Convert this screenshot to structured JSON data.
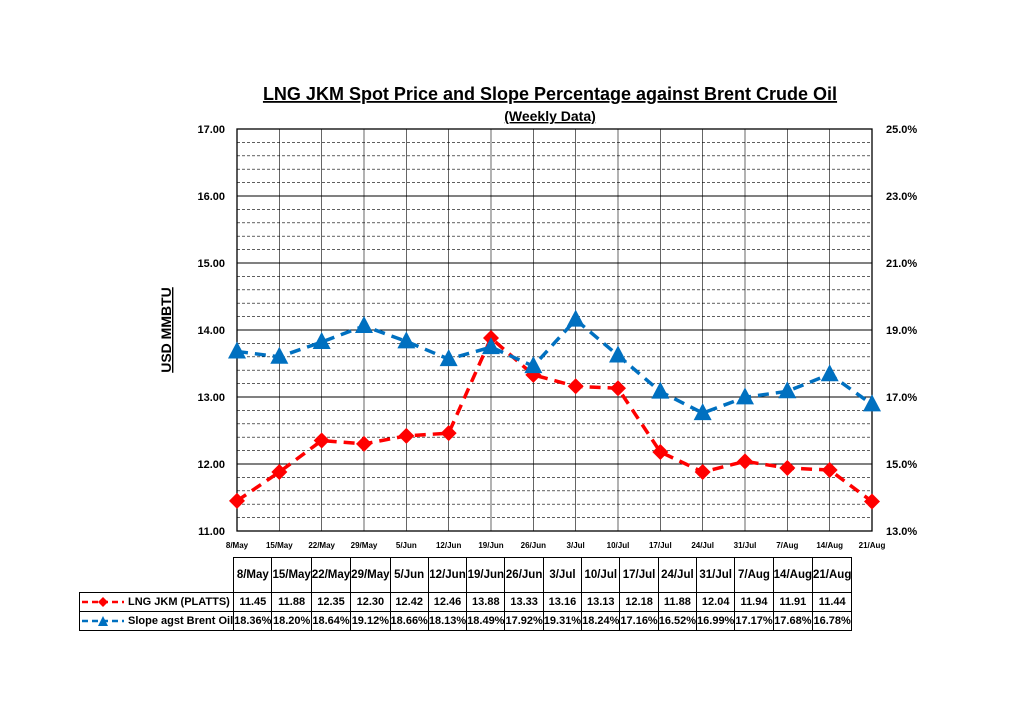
{
  "chart_data": {
    "type": "line",
    "title": "LNG JKM Spot Price and Slope Percentage against Brent Crude Oil",
    "subtitle": "(Weekly Data)",
    "ylabel": "USD MMBTU",
    "ylim": [
      11.0,
      17.0
    ],
    "y2lim": [
      13.0,
      25.0
    ],
    "y_ticks": [
      "11.00",
      "12.00",
      "13.00",
      "14.00",
      "15.00",
      "16.00",
      "17.00"
    ],
    "y2_ticks": [
      "13.0%",
      "15.0%",
      "17.0%",
      "19.0%",
      "21.0%",
      "23.0%",
      "25.0%"
    ],
    "categories": [
      "8/May",
      "15/May",
      "22/May",
      "29/May",
      "5/Jun",
      "12/Jun",
      "19/Jun",
      "26/Jun",
      "3/Jul",
      "10/Jul",
      "17/Jul",
      "24/Jul",
      "31/Jul",
      "7/Aug",
      "14/Aug",
      "21/Aug"
    ],
    "table_headers": [
      "8/May",
      "15/May",
      "22/May",
      "29/May",
      "5/Jun",
      "12/Jun",
      "19/Jun",
      "26/Jun",
      "3/Jul",
      "10/Jul",
      "17/Jul",
      "24/Jul",
      "31/Jul",
      "7/Aug",
      "14/Aug",
      "21/Aug"
    ],
    "grid": true,
    "legend": "table-bottom",
    "series": [
      {
        "name": "LNG JKM (PLATTS)",
        "axis": "left",
        "color": "#ff0000",
        "marker": "diamond",
        "values": [
          11.45,
          11.88,
          12.35,
          12.3,
          12.42,
          12.46,
          13.88,
          13.33,
          13.16,
          13.13,
          12.18,
          11.88,
          12.04,
          11.94,
          11.91,
          11.44
        ],
        "labels": [
          "11.45",
          "11.88",
          "12.35",
          "12.30",
          "12.42",
          "12.46",
          "13.88",
          "13.33",
          "13.16",
          "13.13",
          "12.18",
          "11.88",
          "12.04",
          "11.94",
          "11.91",
          "11.44"
        ]
      },
      {
        "name": "Slope agst Brent Oil",
        "axis": "right",
        "color": "#0070c0",
        "marker": "triangle",
        "values": [
          18.36,
          18.2,
          18.64,
          19.12,
          18.66,
          18.13,
          18.49,
          17.92,
          19.31,
          18.24,
          17.16,
          16.52,
          16.99,
          17.17,
          17.68,
          16.78
        ],
        "labels": [
          "18.36%",
          "18.20%",
          "18.64%",
          "19.12%",
          "18.66%",
          "18.13%",
          "18.49%",
          "17.92%",
          "19.31%",
          "18.24%",
          "17.16%",
          "16.52%",
          "16.99%",
          "17.17%",
          "17.68%",
          "16.78%"
        ]
      }
    ]
  }
}
